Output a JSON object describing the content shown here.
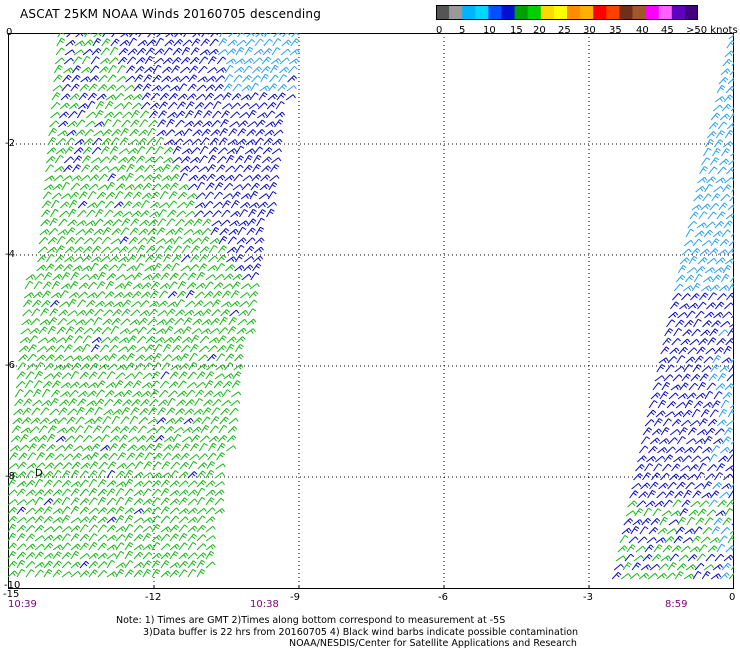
{
  "title": "ASCAT 25KM NOAA Winds 20160705 descending",
  "colorbar": {
    "colors": [
      "#555555",
      "#999999",
      "#00b4ff",
      "#00d8ff",
      "#0050ff",
      "#0010d0",
      "#00a000",
      "#00d000",
      "#ffd800",
      "#ffff00",
      "#ff8c00",
      "#ffb000",
      "#ff0000",
      "#ff4000",
      "#703018",
      "#a05828",
      "#ff00ff",
      "#ff60ff",
      "#6000c0",
      "#400080"
    ],
    "labels": [
      "0",
      "5",
      "10",
      "15",
      "20",
      "25",
      "30",
      "35",
      "40",
      "45",
      ">50 knots"
    ]
  },
  "axes": {
    "y_labels": [
      "0",
      "-2",
      "-4",
      "-6",
      "-8",
      "-10"
    ],
    "x_labels": [
      "-15",
      "-12",
      "-9",
      "-6",
      "-3",
      "0"
    ]
  },
  "times": [
    "10:39",
    "10:38",
    "8:59"
  ],
  "notes": [
    "Note: 1) Times are GMT 2)Times along bottom correspond to measurement at -5S",
    "3)Data buffer is 22 hrs from 20160705 4) Black wind barbs indicate possible contamination",
    "NOAA/NESDIS/Center for Satellite Applications and Research"
  ],
  "wind_colors": {
    "green": "#14b814",
    "blue": "#0a0ac8",
    "light_blue": "#2aa0f0"
  },
  "marker": "D"
}
